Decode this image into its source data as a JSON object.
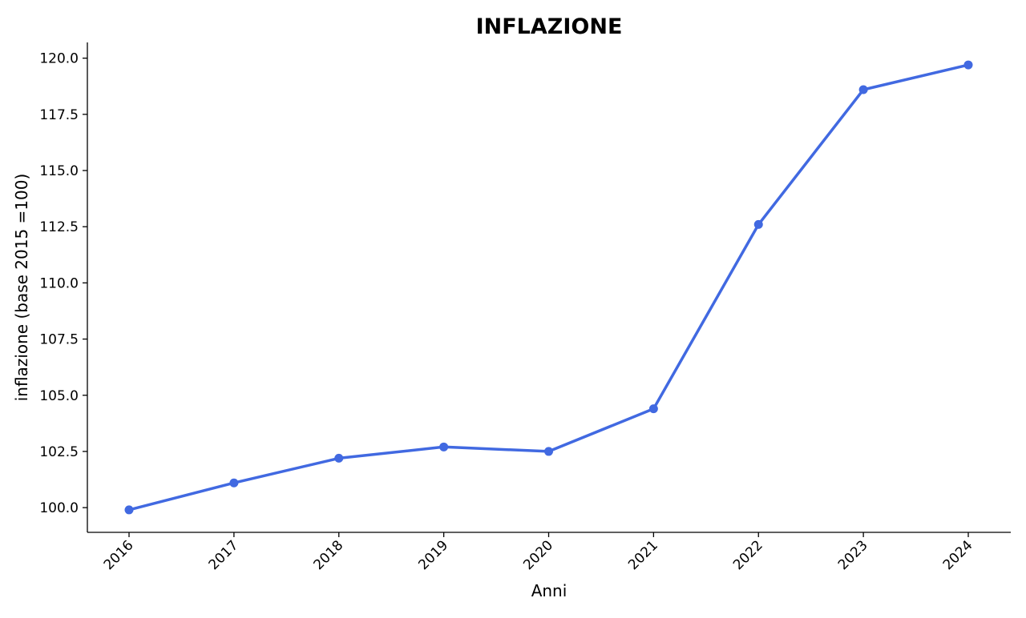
{
  "chart_data": {
    "type": "line",
    "title": "INFLAZIONE",
    "xlabel": "Anni",
    "ylabel": "inflazione (base 2015 =100)",
    "x": [
      "2016",
      "2017",
      "2018",
      "2019",
      "2020",
      "2021",
      "2022",
      "2023",
      "2024"
    ],
    "series": [
      {
        "values": [
          99.9,
          101.1,
          102.2,
          102.7,
          102.5,
          104.4,
          112.6,
          118.6,
          119.7
        ],
        "color": "#4169e1"
      }
    ],
    "ylim": [
      98.9,
      120.7
    ],
    "yticks": [
      100.0,
      102.5,
      105.0,
      107.5,
      110.0,
      112.5,
      115.0,
      117.5,
      120.0
    ],
    "ytick_labels": [
      "100.0",
      "102.5",
      "105.0",
      "107.5",
      "110.0",
      "112.5",
      "115.0",
      "117.5",
      "120.0"
    ],
    "grid": false,
    "markers": true,
    "spines": "left-bottom"
  }
}
